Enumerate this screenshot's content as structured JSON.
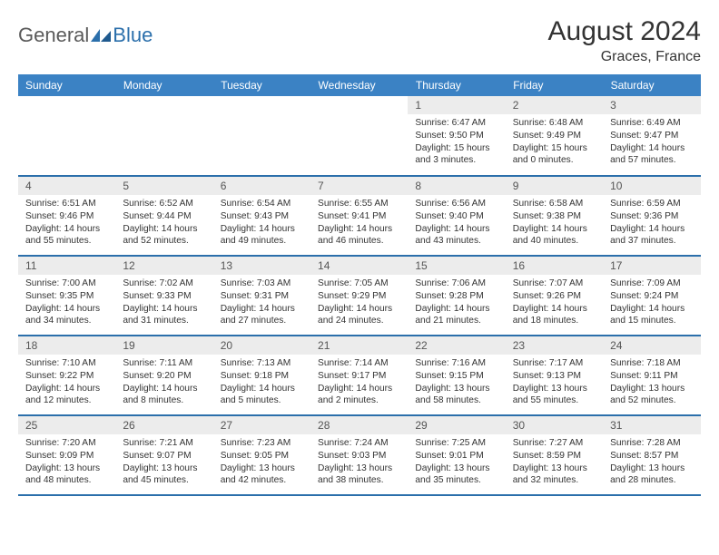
{
  "logo": {
    "general": "General",
    "blue": "Blue"
  },
  "title": "August 2024",
  "location": "Graces, France",
  "colors": {
    "header_bg": "#3b82c4",
    "row_divider": "#2b6fab",
    "daynum_bg": "#ececec",
    "text": "#333333",
    "logo_gray": "#5a5a5a",
    "logo_blue": "#2b6fab"
  },
  "dayNames": [
    "Sunday",
    "Monday",
    "Tuesday",
    "Wednesday",
    "Thursday",
    "Friday",
    "Saturday"
  ],
  "weeks": [
    [
      null,
      null,
      null,
      null,
      {
        "n": "1",
        "sr": "6:47 AM",
        "ss": "9:50 PM",
        "dl": "15 hours and 3 minutes."
      },
      {
        "n": "2",
        "sr": "6:48 AM",
        "ss": "9:49 PM",
        "dl": "15 hours and 0 minutes."
      },
      {
        "n": "3",
        "sr": "6:49 AM",
        "ss": "9:47 PM",
        "dl": "14 hours and 57 minutes."
      }
    ],
    [
      {
        "n": "4",
        "sr": "6:51 AM",
        "ss": "9:46 PM",
        "dl": "14 hours and 55 minutes."
      },
      {
        "n": "5",
        "sr": "6:52 AM",
        "ss": "9:44 PM",
        "dl": "14 hours and 52 minutes."
      },
      {
        "n": "6",
        "sr": "6:54 AM",
        "ss": "9:43 PM",
        "dl": "14 hours and 49 minutes."
      },
      {
        "n": "7",
        "sr": "6:55 AM",
        "ss": "9:41 PM",
        "dl": "14 hours and 46 minutes."
      },
      {
        "n": "8",
        "sr": "6:56 AM",
        "ss": "9:40 PM",
        "dl": "14 hours and 43 minutes."
      },
      {
        "n": "9",
        "sr": "6:58 AM",
        "ss": "9:38 PM",
        "dl": "14 hours and 40 minutes."
      },
      {
        "n": "10",
        "sr": "6:59 AM",
        "ss": "9:36 PM",
        "dl": "14 hours and 37 minutes."
      }
    ],
    [
      {
        "n": "11",
        "sr": "7:00 AM",
        "ss": "9:35 PM",
        "dl": "14 hours and 34 minutes."
      },
      {
        "n": "12",
        "sr": "7:02 AM",
        "ss": "9:33 PM",
        "dl": "14 hours and 31 minutes."
      },
      {
        "n": "13",
        "sr": "7:03 AM",
        "ss": "9:31 PM",
        "dl": "14 hours and 27 minutes."
      },
      {
        "n": "14",
        "sr": "7:05 AM",
        "ss": "9:29 PM",
        "dl": "14 hours and 24 minutes."
      },
      {
        "n": "15",
        "sr": "7:06 AM",
        "ss": "9:28 PM",
        "dl": "14 hours and 21 minutes."
      },
      {
        "n": "16",
        "sr": "7:07 AM",
        "ss": "9:26 PM",
        "dl": "14 hours and 18 minutes."
      },
      {
        "n": "17",
        "sr": "7:09 AM",
        "ss": "9:24 PM",
        "dl": "14 hours and 15 minutes."
      }
    ],
    [
      {
        "n": "18",
        "sr": "7:10 AM",
        "ss": "9:22 PM",
        "dl": "14 hours and 12 minutes."
      },
      {
        "n": "19",
        "sr": "7:11 AM",
        "ss": "9:20 PM",
        "dl": "14 hours and 8 minutes."
      },
      {
        "n": "20",
        "sr": "7:13 AM",
        "ss": "9:18 PM",
        "dl": "14 hours and 5 minutes."
      },
      {
        "n": "21",
        "sr": "7:14 AM",
        "ss": "9:17 PM",
        "dl": "14 hours and 2 minutes."
      },
      {
        "n": "22",
        "sr": "7:16 AM",
        "ss": "9:15 PM",
        "dl": "13 hours and 58 minutes."
      },
      {
        "n": "23",
        "sr": "7:17 AM",
        "ss": "9:13 PM",
        "dl": "13 hours and 55 minutes."
      },
      {
        "n": "24",
        "sr": "7:18 AM",
        "ss": "9:11 PM",
        "dl": "13 hours and 52 minutes."
      }
    ],
    [
      {
        "n": "25",
        "sr": "7:20 AM",
        "ss": "9:09 PM",
        "dl": "13 hours and 48 minutes."
      },
      {
        "n": "26",
        "sr": "7:21 AM",
        "ss": "9:07 PM",
        "dl": "13 hours and 45 minutes."
      },
      {
        "n": "27",
        "sr": "7:23 AM",
        "ss": "9:05 PM",
        "dl": "13 hours and 42 minutes."
      },
      {
        "n": "28",
        "sr": "7:24 AM",
        "ss": "9:03 PM",
        "dl": "13 hours and 38 minutes."
      },
      {
        "n": "29",
        "sr": "7:25 AM",
        "ss": "9:01 PM",
        "dl": "13 hours and 35 minutes."
      },
      {
        "n": "30",
        "sr": "7:27 AM",
        "ss": "8:59 PM",
        "dl": "13 hours and 32 minutes."
      },
      {
        "n": "31",
        "sr": "7:28 AM",
        "ss": "8:57 PM",
        "dl": "13 hours and 28 minutes."
      }
    ]
  ],
  "labels": {
    "sunrise": "Sunrise: ",
    "sunset": "Sunset: ",
    "daylight": "Daylight: "
  }
}
